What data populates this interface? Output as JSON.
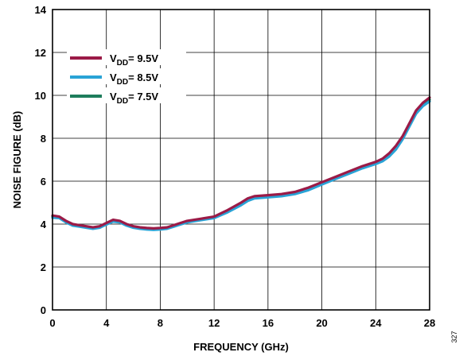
{
  "chart_data": {
    "type": "line",
    "xlabel": "FREQUENCY (GHz)",
    "ylabel": "NOISE FIGURE (dB)",
    "xlim": [
      0,
      28
    ],
    "ylim": [
      0,
      14
    ],
    "xticks": [
      0,
      4,
      8,
      12,
      16,
      20,
      24,
      28
    ],
    "yticks": [
      0,
      2,
      4,
      6,
      8,
      10,
      12,
      14
    ],
    "grid": true,
    "legend_position": "top-left",
    "figure_id": "327",
    "series": [
      {
        "name": "9.5V",
        "label_prefix": "V",
        "label_sub": "DD",
        "label_suffix": "= 9.5V",
        "color": "#9b1b47",
        "x": [
          0,
          0.5,
          1,
          1.5,
          2,
          2.5,
          3,
          3.5,
          4,
          4.5,
          5,
          5.5,
          6,
          6.5,
          7,
          7.5,
          8,
          8.5,
          9,
          9.5,
          10,
          11,
          12,
          13,
          14,
          14.5,
          15,
          16,
          17,
          18,
          19,
          20,
          21,
          22,
          23,
          24,
          24.5,
          25,
          25.5,
          26,
          26.5,
          27,
          27.5,
          28
        ],
        "y": [
          4.4,
          4.35,
          4.15,
          4.0,
          3.95,
          3.9,
          3.85,
          3.9,
          4.05,
          4.2,
          4.15,
          4.0,
          3.9,
          3.85,
          3.82,
          3.8,
          3.82,
          3.85,
          3.95,
          4.05,
          4.15,
          4.25,
          4.35,
          4.65,
          5.0,
          5.2,
          5.3,
          5.35,
          5.4,
          5.5,
          5.7,
          5.95,
          6.2,
          6.45,
          6.7,
          6.9,
          7.05,
          7.3,
          7.65,
          8.1,
          8.7,
          9.3,
          9.65,
          9.9
        ]
      },
      {
        "name": "8.5V",
        "label_prefix": "V",
        "label_sub": "DD",
        "label_suffix": "= 8.5V",
        "color": "#29a3d6",
        "x": [
          0,
          0.5,
          1,
          1.5,
          2,
          2.5,
          3,
          3.5,
          4,
          4.5,
          5,
          5.5,
          6,
          6.5,
          7,
          7.5,
          8,
          8.5,
          9,
          9.5,
          10,
          11,
          12,
          13,
          14,
          14.5,
          15,
          16,
          17,
          18,
          19,
          20,
          21,
          22,
          23,
          24,
          24.5,
          25,
          25.5,
          26,
          26.5,
          27,
          27.5,
          28
        ],
        "y": [
          4.3,
          4.28,
          4.08,
          3.93,
          3.88,
          3.83,
          3.78,
          3.83,
          3.98,
          4.12,
          4.08,
          3.93,
          3.83,
          3.78,
          3.75,
          3.73,
          3.75,
          3.78,
          3.88,
          3.98,
          4.08,
          4.18,
          4.28,
          4.55,
          4.88,
          5.08,
          5.2,
          5.25,
          5.3,
          5.4,
          5.58,
          5.85,
          6.1,
          6.35,
          6.6,
          6.8,
          6.93,
          7.15,
          7.48,
          7.95,
          8.55,
          9.15,
          9.5,
          9.72
        ]
      },
      {
        "name": "7.5V",
        "label_prefix": "V",
        "label_sub": "DD",
        "label_suffix": "= 7.5V",
        "color": "#1e7d5c",
        "x": [
          0,
          0.5,
          1,
          1.5,
          2,
          2.5,
          3,
          3.5,
          4,
          4.5,
          5,
          5.5,
          6,
          6.5,
          7,
          7.5,
          8,
          8.5,
          9,
          9.5,
          10,
          11,
          12,
          13,
          14,
          14.5,
          15,
          16,
          17,
          18,
          19,
          20,
          21,
          22,
          23,
          24,
          24.5,
          25,
          25.5,
          26,
          26.5,
          27,
          27.5,
          28
        ],
        "y": [
          4.35,
          4.31,
          4.11,
          3.96,
          3.91,
          3.86,
          3.81,
          3.86,
          4.01,
          4.16,
          4.11,
          3.96,
          3.86,
          3.81,
          3.78,
          3.76,
          3.78,
          3.81,
          3.91,
          4.01,
          4.11,
          4.21,
          4.31,
          4.6,
          4.94,
          5.14,
          5.25,
          5.3,
          5.35,
          5.45,
          5.64,
          5.9,
          6.15,
          6.4,
          6.65,
          6.85,
          6.99,
          7.22,
          7.56,
          8.02,
          8.62,
          9.22,
          9.57,
          9.8
        ]
      }
    ]
  }
}
